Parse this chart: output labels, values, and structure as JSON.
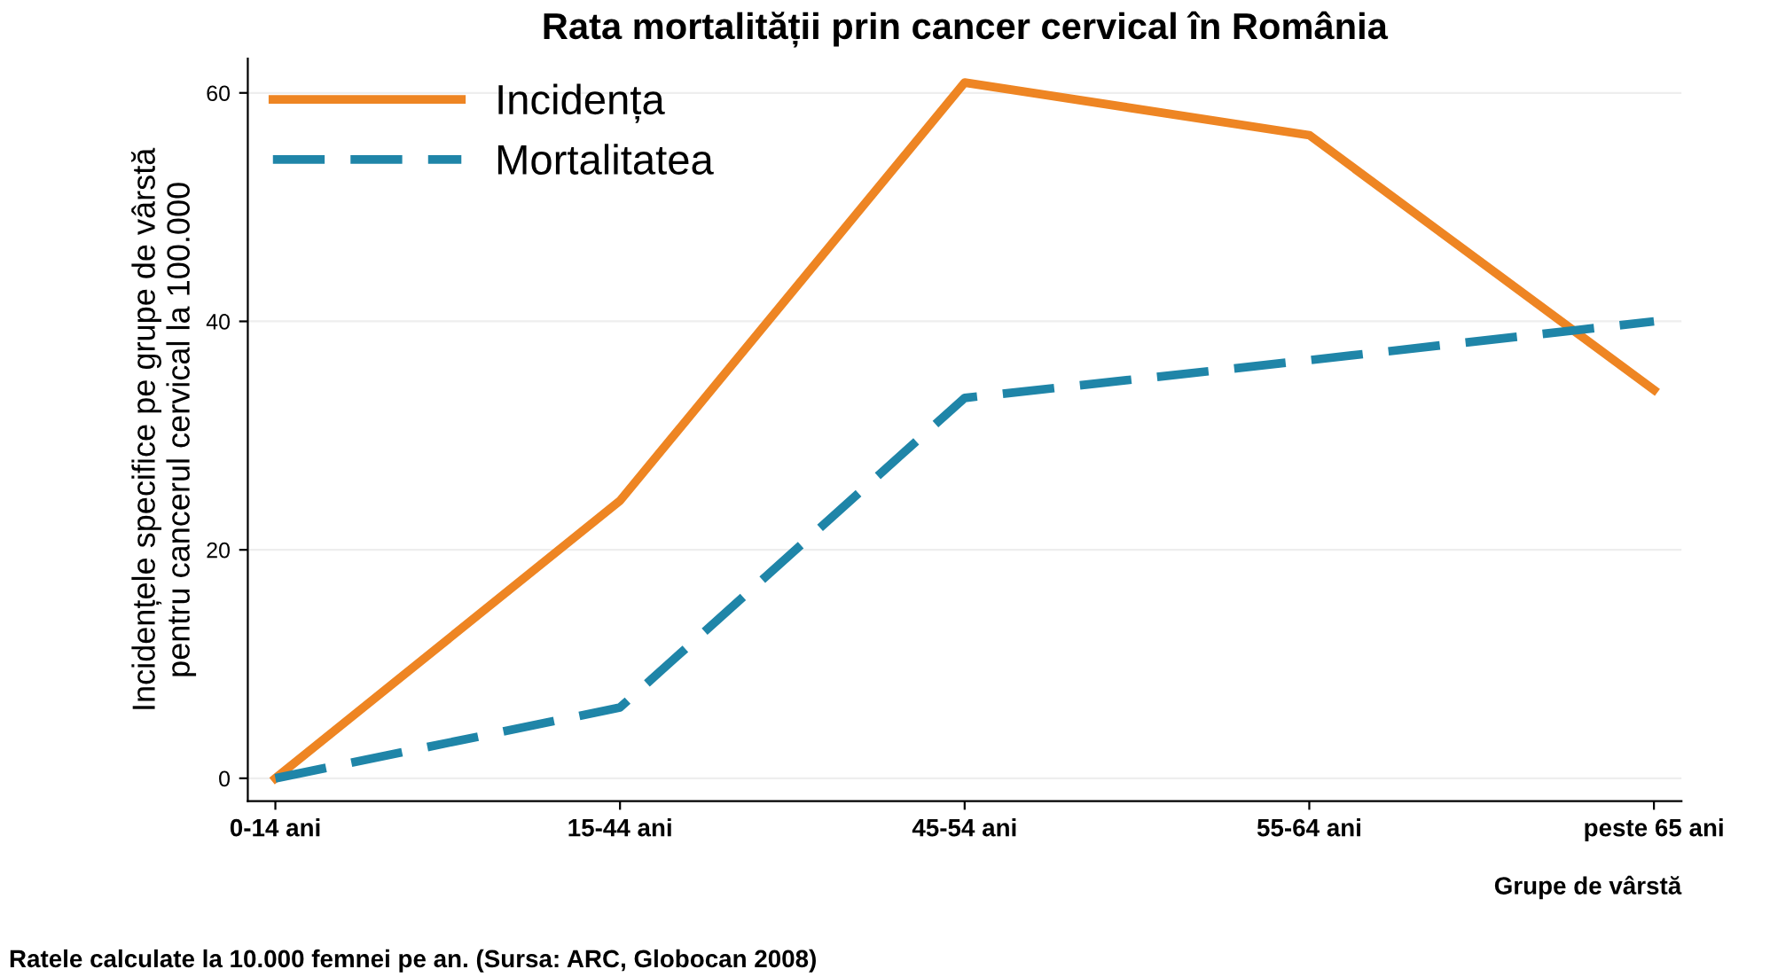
{
  "chart_data": {
    "type": "line",
    "title": "Rata mortalității prin cancer cervical în România",
    "categories": [
      "0-14 ani",
      "15-44 ani",
      "45-54 ani",
      "55-64 ani",
      "peste 65 ani"
    ],
    "series": [
      {
        "name": "Incidența",
        "color": "#ee8523",
        "values": [
          0,
          24.3,
          60.9,
          56.3,
          34
        ],
        "line_style": "solid"
      },
      {
        "name": "Mortalitatea",
        "color": "#1f85a8",
        "values": [
          0,
          6.2,
          33.3,
          36.6,
          40
        ],
        "line_style": "dashed"
      }
    ],
    "xlabel": "Grupe de vârstă",
    "ylabel": "Incidențele specifice pe grupe de vârstă\npentru cancerul cervical la 100.000",
    "ylim": [
      -2,
      63
    ],
    "yticks": [
      0,
      20,
      40,
      60
    ],
    "grid": "y",
    "legend": "top left",
    "annotations": [
      "Ratele calculate la 10.000 femnei pe an. (Sursa: ARC, Globocan 2008)"
    ]
  }
}
